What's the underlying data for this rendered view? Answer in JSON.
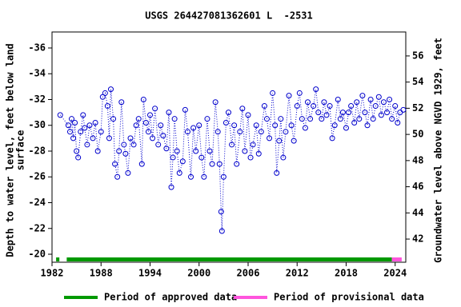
{
  "chart_data": {
    "type": "scatter",
    "title": "USGS 264427081362601 L  -2531",
    "ylabel": [
      "Depth to water level, feet below land",
      "surface"
    ],
    "y2label": "Groundwater level above NGVD 1929, feet",
    "color": "#0000cc",
    "x": [
      1983.0,
      1984.0,
      1984.2,
      1984.4,
      1984.6,
      1984.8,
      1985.0,
      1985.2,
      1985.5,
      1985.8,
      1986.0,
      1986.3,
      1986.6,
      1987.0,
      1987.3,
      1987.6,
      1988.0,
      1988.2,
      1988.5,
      1988.8,
      1989.0,
      1989.2,
      1989.5,
      1989.7,
      1990.0,
      1990.2,
      1990.5,
      1990.8,
      1991.0,
      1991.3,
      1991.6,
      1992.0,
      1992.3,
      1992.6,
      1993.0,
      1993.2,
      1993.5,
      1993.8,
      1994.0,
      1994.3,
      1994.6,
      1995.0,
      1995.3,
      1995.6,
      1996.0,
      1996.3,
      1996.6,
      1996.8,
      1997.0,
      1997.3,
      1997.6,
      1998.0,
      1998.3,
      1998.6,
      1999.0,
      1999.3,
      1999.6,
      2000.0,
      2000.3,
      2000.6,
      2001.0,
      2001.3,
      2001.6,
      2002.0,
      2002.3,
      2002.5,
      2002.7,
      2002.8,
      2003.0,
      2003.3,
      2003.6,
      2004.0,
      2004.3,
      2004.6,
      2005.0,
      2005.3,
      2005.6,
      2006.0,
      2006.3,
      2006.6,
      2007.0,
      2007.3,
      2007.6,
      2008.0,
      2008.3,
      2008.6,
      2009.0,
      2009.3,
      2009.5,
      2009.8,
      2010.0,
      2010.3,
      2010.6,
      2011.0,
      2011.3,
      2011.6,
      2012.0,
      2012.3,
      2012.6,
      2013.0,
      2013.3,
      2013.6,
      2014.0,
      2014.3,
      2014.6,
      2015.0,
      2015.3,
      2015.6,
      2016.0,
      2016.3,
      2016.6,
      2017.0,
      2017.3,
      2017.6,
      2018.0,
      2018.3,
      2018.6,
      2019.0,
      2019.3,
      2019.6,
      2020.0,
      2020.3,
      2020.6,
      2021.0,
      2021.3,
      2021.6,
      2022.0,
      2022.3,
      2022.6,
      2023.0,
      2023.3,
      2023.6,
      2024.0,
      2024.3,
      2024.6,
      2025.0
    ],
    "values": [
      -30.8,
      -30.0,
      -29.5,
      -30.5,
      -29.0,
      -30.2,
      -28.0,
      -27.5,
      -29.5,
      -30.8,
      -29.8,
      -28.5,
      -30.0,
      -29.0,
      -30.2,
      -28.0,
      -29.5,
      -32.2,
      -32.5,
      -31.5,
      -29.0,
      -32.8,
      -30.5,
      -27.0,
      -26.0,
      -28.0,
      -31.8,
      -28.5,
      -27.8,
      -26.3,
      -29.0,
      -28.5,
      -30.0,
      -30.5,
      -27.0,
      -32.0,
      -30.2,
      -29.5,
      -30.8,
      -29.0,
      -31.3,
      -28.5,
      -30.0,
      -29.2,
      -28.2,
      -31.0,
      -25.2,
      -27.5,
      -30.5,
      -28.0,
      -26.3,
      -27.2,
      -31.2,
      -29.5,
      -26.0,
      -29.8,
      -28.0,
      -30.0,
      -27.5,
      -26.0,
      -30.5,
      -28.0,
      -27.0,
      -31.8,
      -29.5,
      -27.0,
      -23.3,
      -21.8,
      -26.0,
      -30.2,
      -31.0,
      -28.5,
      -30.0,
      -27.0,
      -29.5,
      -31.3,
      -28.0,
      -30.8,
      -27.5,
      -28.5,
      -30.0,
      -27.8,
      -29.5,
      -31.5,
      -30.5,
      -29.0,
      -32.5,
      -30.0,
      -26.3,
      -28.8,
      -30.5,
      -27.5,
      -29.5,
      -32.3,
      -30.0,
      -28.8,
      -31.5,
      -32.5,
      -30.5,
      -29.8,
      -31.8,
      -30.5,
      -31.5,
      -32.8,
      -31.0,
      -30.5,
      -31.8,
      -30.8,
      -31.5,
      -29.0,
      -30.0,
      -32.0,
      -30.5,
      -31.0,
      -29.8,
      -31.0,
      -31.5,
      -30.2,
      -31.8,
      -30.5,
      -32.3,
      -31.0,
      -30.0,
      -32.0,
      -30.5,
      -31.5,
      -32.2,
      -30.8,
      -31.8,
      -31.0,
      -32.0,
      -30.5,
      -31.5,
      -30.2,
      -31.0,
      -31.2
    ],
    "xlim": [
      1982,
      2025.3
    ],
    "xticks": [
      1982,
      1988,
      1994,
      2000,
      2006,
      2012,
      2018,
      2024
    ],
    "ylim": [
      -37.24,
      -19.38
    ],
    "y_inverted": true,
    "yticks": [
      -36,
      -34,
      -32,
      -30,
      -28,
      -26,
      -24,
      -22,
      -20
    ],
    "y2lim": [
      57.83,
      40.23
    ],
    "y2ticks": [
      42,
      44,
      46,
      48,
      50,
      52,
      54,
      56
    ],
    "periods": [
      {
        "name": "Period of approved data",
        "color": "#009900",
        "ranges": [
          [
            1982.5,
            1982.9
          ],
          [
            1983.8,
            2023.6
          ]
        ]
      },
      {
        "name": "Period of provisional data",
        "color": "#ff55dd",
        "ranges": [
          [
            2023.6,
            2024.8
          ]
        ]
      }
    ]
  }
}
